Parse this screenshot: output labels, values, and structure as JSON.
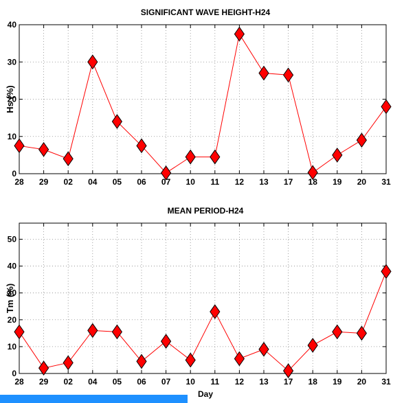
{
  "colors": {
    "series_line": "#ff0000",
    "marker_fill": "#ff0000",
    "marker_edge": "#000000",
    "grid": "#888888",
    "bottom_bar": "#1e90ff"
  },
  "chart_data": [
    {
      "type": "line",
      "title": "SIGNIFICANT WAVE HEIGHT-H24",
      "xlabel": "",
      "ylabel": "Hs (%)",
      "categories": [
        "28",
        "29",
        "02",
        "04",
        "05",
        "06",
        "07",
        "10",
        "11",
        "12",
        "13",
        "17",
        "18",
        "19",
        "20",
        "31"
      ],
      "values": [
        7.5,
        6.5,
        4,
        30,
        14,
        7.5,
        0.2,
        4.5,
        4.5,
        37.5,
        27,
        26.5,
        0.3,
        5,
        9,
        18
      ],
      "ylim": [
        0,
        40
      ],
      "yticks": [
        0,
        10,
        20,
        30,
        40
      ],
      "grid": true,
      "marker": "diamond"
    },
    {
      "type": "line",
      "title": "MEAN PERIOD-H24",
      "xlabel": "Day",
      "ylabel": "Tm (%)",
      "categories": [
        "28",
        "29",
        "02",
        "04",
        "05",
        "06",
        "07",
        "10",
        "11",
        "12",
        "13",
        "17",
        "18",
        "19",
        "20",
        "31"
      ],
      "values": [
        15.5,
        2,
        4,
        16,
        15.5,
        4.5,
        12,
        5,
        23,
        5.5,
        9,
        1,
        10.5,
        15.5,
        15,
        38
      ],
      "ylim": [
        0,
        56
      ],
      "yticks": [
        0,
        10,
        20,
        30,
        40,
        50
      ],
      "grid": true,
      "marker": "diamond"
    }
  ]
}
